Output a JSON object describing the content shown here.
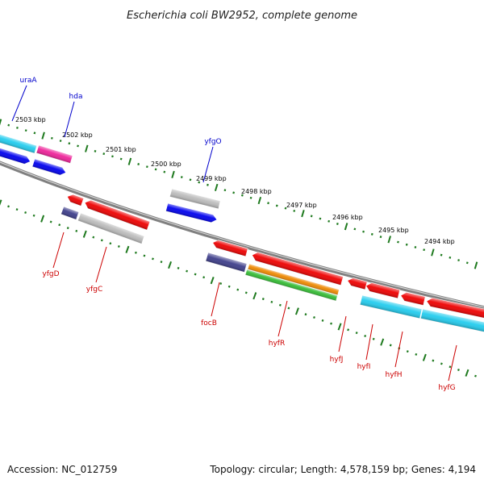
{
  "title": "Escherichia coli BW2952, complete genome",
  "accession": "Accession: NC_012759",
  "summary": "Topology: circular; Length: 4,578,159 bp; Genes: 4,194",
  "colors": {
    "backbone": "#808080",
    "tick": "#1f7a1f",
    "forward_label": "#0000cc",
    "reverse_label": "#cc0000",
    "blue": "#0000ee",
    "cyan": "#22ccee",
    "magenta": "#ee2299",
    "red": "#ee0000",
    "gray": "#bbbbbb",
    "navy": "#3d3d8a",
    "orange": "#ee8800",
    "green": "#33bb33"
  },
  "kbp_labels": [
    "2503 kbp",
    "2502 kbp",
    "2501 kbp",
    "2500 kbp",
    "2499 kbp",
    "2498 kbp",
    "2497 kbp",
    "2496 kbp",
    "2495 kbp",
    "2494 kbp"
  ],
  "forward_genes": [
    "uraA",
    "hda",
    "yfgO"
  ],
  "reverse_genes": [
    "yfgD",
    "yfgC",
    "focB",
    "hyfR",
    "hyfJ",
    "hyfI",
    "hyfH",
    "hyfG"
  ]
}
